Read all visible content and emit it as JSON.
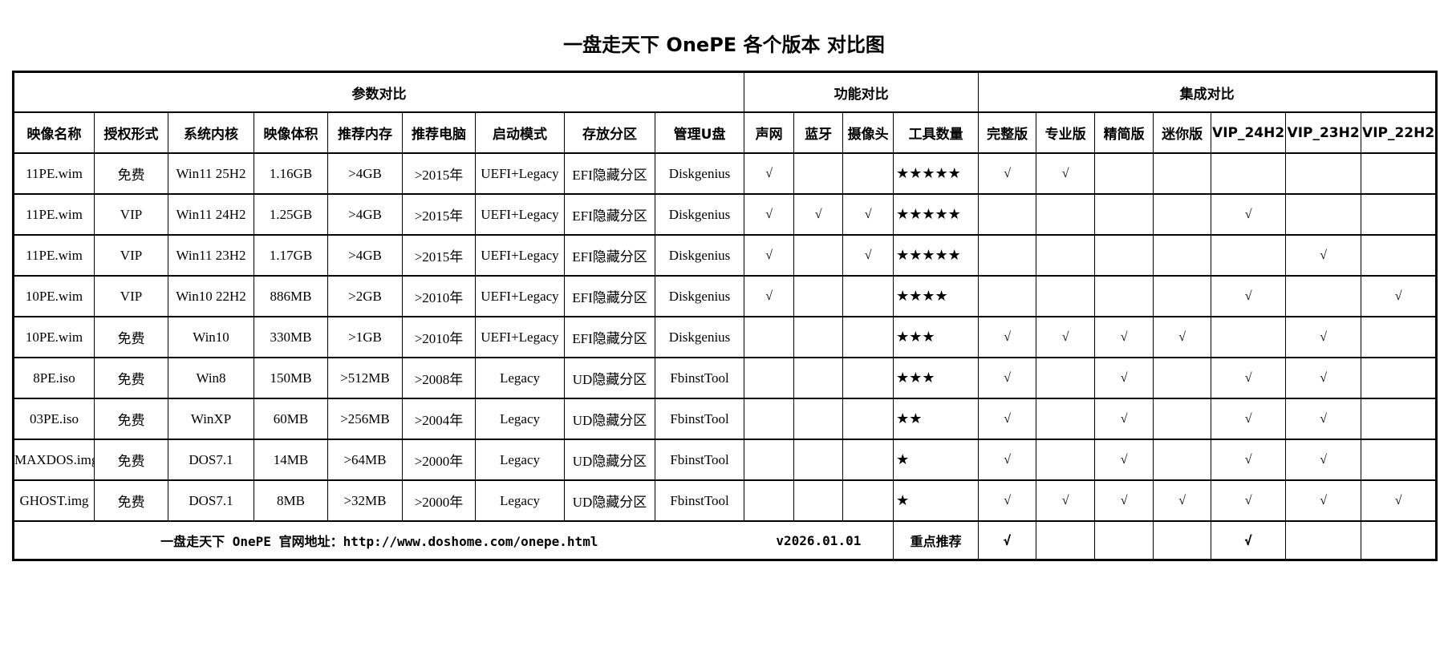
{
  "title": "一盘走天下 OnePE 各个版本 对比图",
  "groups": [
    "参数对比",
    "功能对比",
    "集成对比"
  ],
  "headers": [
    "映像名称",
    "授权形式",
    "系统内核",
    "映像体积",
    "推荐内存",
    "推荐电脑",
    "启动模式",
    "存放分区",
    "管理U盘",
    "声网",
    "蓝牙",
    "摄像头",
    "工具数量",
    "完整版",
    "专业版",
    "精简版",
    "迷你版",
    "VIP_24H2",
    "VIP_23H2",
    "VIP_22H2"
  ],
  "rows": [
    [
      "11PE.wim",
      "免费",
      "Win11 25H2",
      "1.16GB",
      ">4GB",
      ">2015年",
      "UEFI+Legacy",
      "EFI隐藏分区",
      "Diskgenius",
      "√",
      "",
      "",
      "★★★★★",
      "√",
      "√",
      "",
      "",
      "",
      "",
      ""
    ],
    [
      "11PE.wim",
      "VIP",
      "Win11 24H2",
      "1.25GB",
      ">4GB",
      ">2015年",
      "UEFI+Legacy",
      "EFI隐藏分区",
      "Diskgenius",
      "√",
      "√",
      "√",
      "★★★★★",
      "",
      "",
      "",
      "",
      "√",
      "",
      ""
    ],
    [
      "11PE.wim",
      "VIP",
      "Win11 23H2",
      "1.17GB",
      ">4GB",
      ">2015年",
      "UEFI+Legacy",
      "EFI隐藏分区",
      "Diskgenius",
      "√",
      "",
      "√",
      "★★★★★",
      "",
      "",
      "",
      "",
      "",
      "√",
      ""
    ],
    [
      "10PE.wim",
      "VIP",
      "Win10 22H2",
      "886MB",
      ">2GB",
      ">2010年",
      "UEFI+Legacy",
      "EFI隐藏分区",
      "Diskgenius",
      "√",
      "",
      "",
      "★★★★",
      "",
      "",
      "",
      "",
      "√",
      "",
      "√"
    ],
    [
      "10PE.wim",
      "免费",
      "Win10",
      "330MB",
      ">1GB",
      ">2010年",
      "UEFI+Legacy",
      "EFI隐藏分区",
      "Diskgenius",
      "",
      "",
      "",
      "★★★",
      "√",
      "√",
      "√",
      "√",
      "",
      "√",
      ""
    ],
    [
      "8PE.iso",
      "免费",
      "Win8",
      "150MB",
      ">512MB",
      ">2008年",
      "Legacy",
      "UD隐藏分区",
      "FbinstTool",
      "",
      "",
      "",
      "★★★",
      "√",
      "",
      "√",
      "",
      "√",
      "√",
      ""
    ],
    [
      "03PE.iso",
      "免费",
      "WinXP",
      "60MB",
      ">256MB",
      ">2004年",
      "Legacy",
      "UD隐藏分区",
      "FbinstTool",
      "",
      "",
      "",
      "★★",
      "√",
      "",
      "√",
      "",
      "√",
      "√",
      ""
    ],
    [
      "MAXDOS.img",
      "免费",
      "DOS7.1",
      "14MB",
      ">64MB",
      ">2000年",
      "Legacy",
      "UD隐藏分区",
      "FbinstTool",
      "",
      "",
      "",
      "★",
      "√",
      "",
      "√",
      "",
      "√",
      "√",
      ""
    ],
    [
      "GHOST.img",
      "免费",
      "DOS7.1",
      "8MB",
      ">32MB",
      ">2000年",
      "Legacy",
      "UD隐藏分区",
      "FbinstTool",
      "",
      "",
      "",
      "★",
      "√",
      "√",
      "√",
      "√",
      "√",
      "√",
      "√"
    ]
  ],
  "footer": {
    "site": "一盘走天下 OnePE 官网地址：http://www.doshome.com/onepe.html",
    "version": "v2026.01.01",
    "recommend_label": "重点推荐",
    "recommend": [
      "√",
      "",
      "",
      "",
      "√",
      "",
      ""
    ]
  }
}
